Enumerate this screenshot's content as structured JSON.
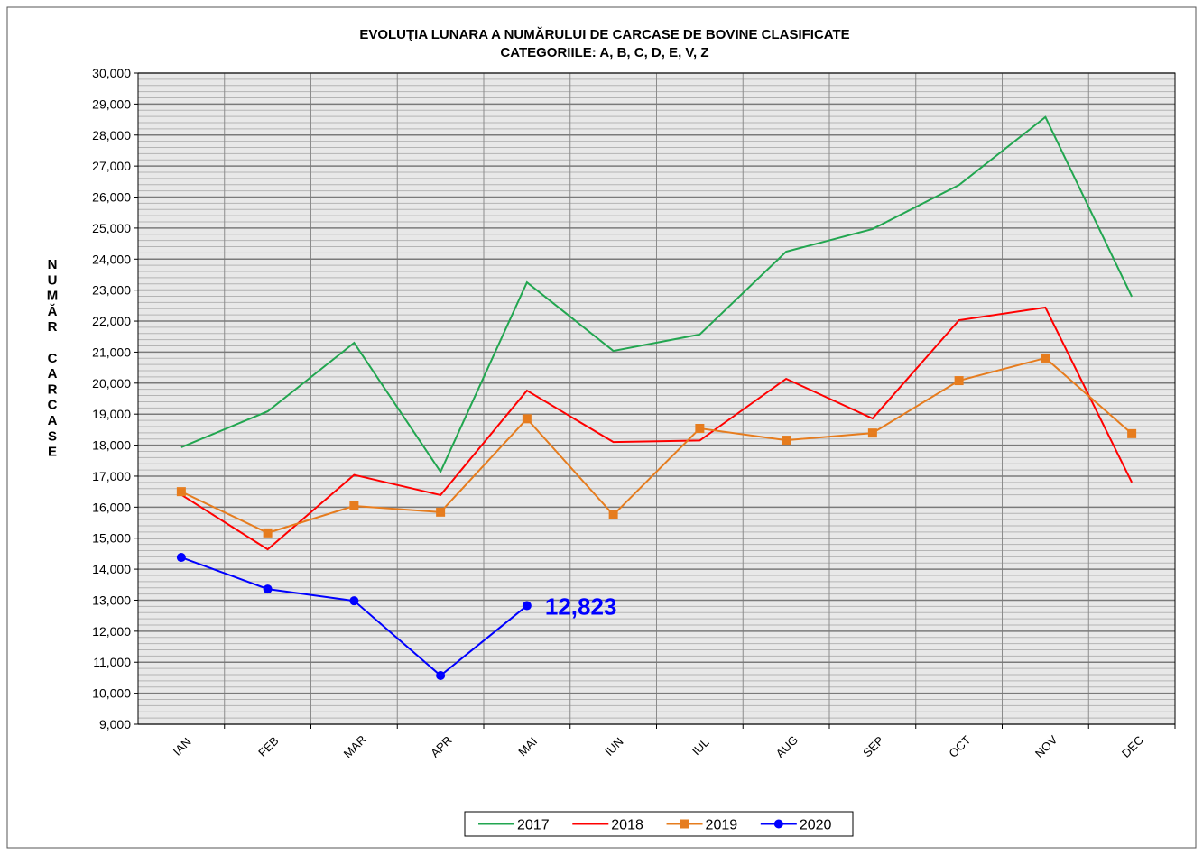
{
  "chart_data": {
    "type": "line",
    "title": "EVOLUŢIA LUNARA  A NUMĂRULUI DE CARCASE DE BOVINE  CLASIFICATE",
    "subtitle": "CATEGORIILE: A, B, C, D, E, V, Z",
    "y_label": "NUMĂR CARCASE",
    "categories": [
      "IAN",
      "FEB",
      "MAR",
      "APR",
      "MAI",
      "IUN",
      "IUL",
      "AUG",
      "SEP",
      "OCT",
      "NOV",
      "DEC"
    ],
    "series": [
      {
        "name": "2017",
        "color": "#22a650",
        "marker": "none",
        "values": [
          17930,
          19090,
          21300,
          17140,
          23250,
          21040,
          21570,
          24240,
          24970,
          26390,
          28580,
          22790
        ]
      },
      {
        "name": "2018",
        "color": "#ff0000",
        "marker": "none",
        "values": [
          16400,
          14640,
          17040,
          16390,
          19760,
          18100,
          18150,
          20140,
          18860,
          22030,
          22440,
          16800
        ]
      },
      {
        "name": "2019",
        "color": "#e67c1e",
        "marker": "square",
        "values": [
          16500,
          15170,
          16040,
          15840,
          18850,
          15750,
          18540,
          18160,
          18390,
          20080,
          20810,
          18370
        ]
      },
      {
        "name": "2020",
        "color": "#0000ff",
        "marker": "circle",
        "values": [
          14380,
          13360,
          12980,
          10570,
          12823,
          null,
          null,
          null,
          null,
          null,
          null,
          null
        ],
        "value_labels": [
          null,
          null,
          null,
          null,
          "12,823",
          null,
          null,
          null,
          null,
          null,
          null,
          null
        ]
      }
    ],
    "ylim": [
      9000,
      30000
    ],
    "yticks": [
      {
        "value": 9000,
        "label": "9,000"
      },
      {
        "value": 10000,
        "label": "10,000"
      },
      {
        "value": 11000,
        "label": "11,000"
      },
      {
        "value": 12000,
        "label": "12,000"
      },
      {
        "value": 13000,
        "label": "13,000"
      },
      {
        "value": 14000,
        "label": "14,000"
      },
      {
        "value": 15000,
        "label": "15,000"
      },
      {
        "value": 16000,
        "label": "16,000"
      },
      {
        "value": 17000,
        "label": "17,000"
      },
      {
        "value": 18000,
        "label": "18,000"
      },
      {
        "value": 19000,
        "label": "19,000"
      },
      {
        "value": 20000,
        "label": "20,000"
      },
      {
        "value": 21000,
        "label": "21,000"
      },
      {
        "value": 22000,
        "label": "22,000"
      },
      {
        "value": 23000,
        "label": "23,000"
      },
      {
        "value": 24000,
        "label": "24,000"
      },
      {
        "value": 25000,
        "label": "25,000"
      },
      {
        "value": 26000,
        "label": "26,000"
      },
      {
        "value": 27000,
        "label": "27,000"
      },
      {
        "value": 28000,
        "label": "28,000"
      },
      {
        "value": 29000,
        "label": "29,000"
      },
      {
        "value": 30000,
        "label": "30,000"
      }
    ],
    "grid": true,
    "minor_grid": true,
    "legend": "bottom"
  }
}
